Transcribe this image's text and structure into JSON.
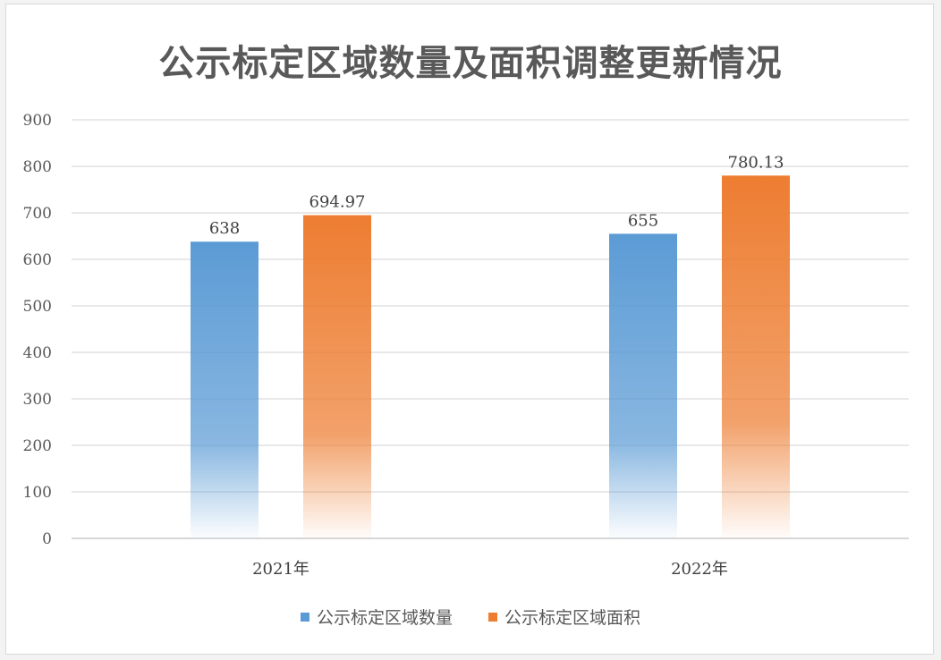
{
  "chart_data": {
    "type": "bar",
    "title": "公示标定区域数量及面积调整更新情况",
    "categories": [
      "2021年",
      "2022年"
    ],
    "series": [
      {
        "name": "公示标定区域数量",
        "values": [
          638,
          655
        ],
        "labels": [
          "638",
          "655"
        ],
        "color": "#5b9bd5"
      },
      {
        "name": "公示标定区域面积",
        "values": [
          694.97,
          780.13
        ],
        "labels": [
          "694.97",
          "780.13"
        ],
        "color": "#ed7d31"
      }
    ],
    "ylim": [
      0,
      900
    ],
    "yticks": [
      0,
      100,
      200,
      300,
      400,
      500,
      600,
      700,
      800,
      900
    ],
    "grid": true,
    "legend_position": "bottom"
  }
}
